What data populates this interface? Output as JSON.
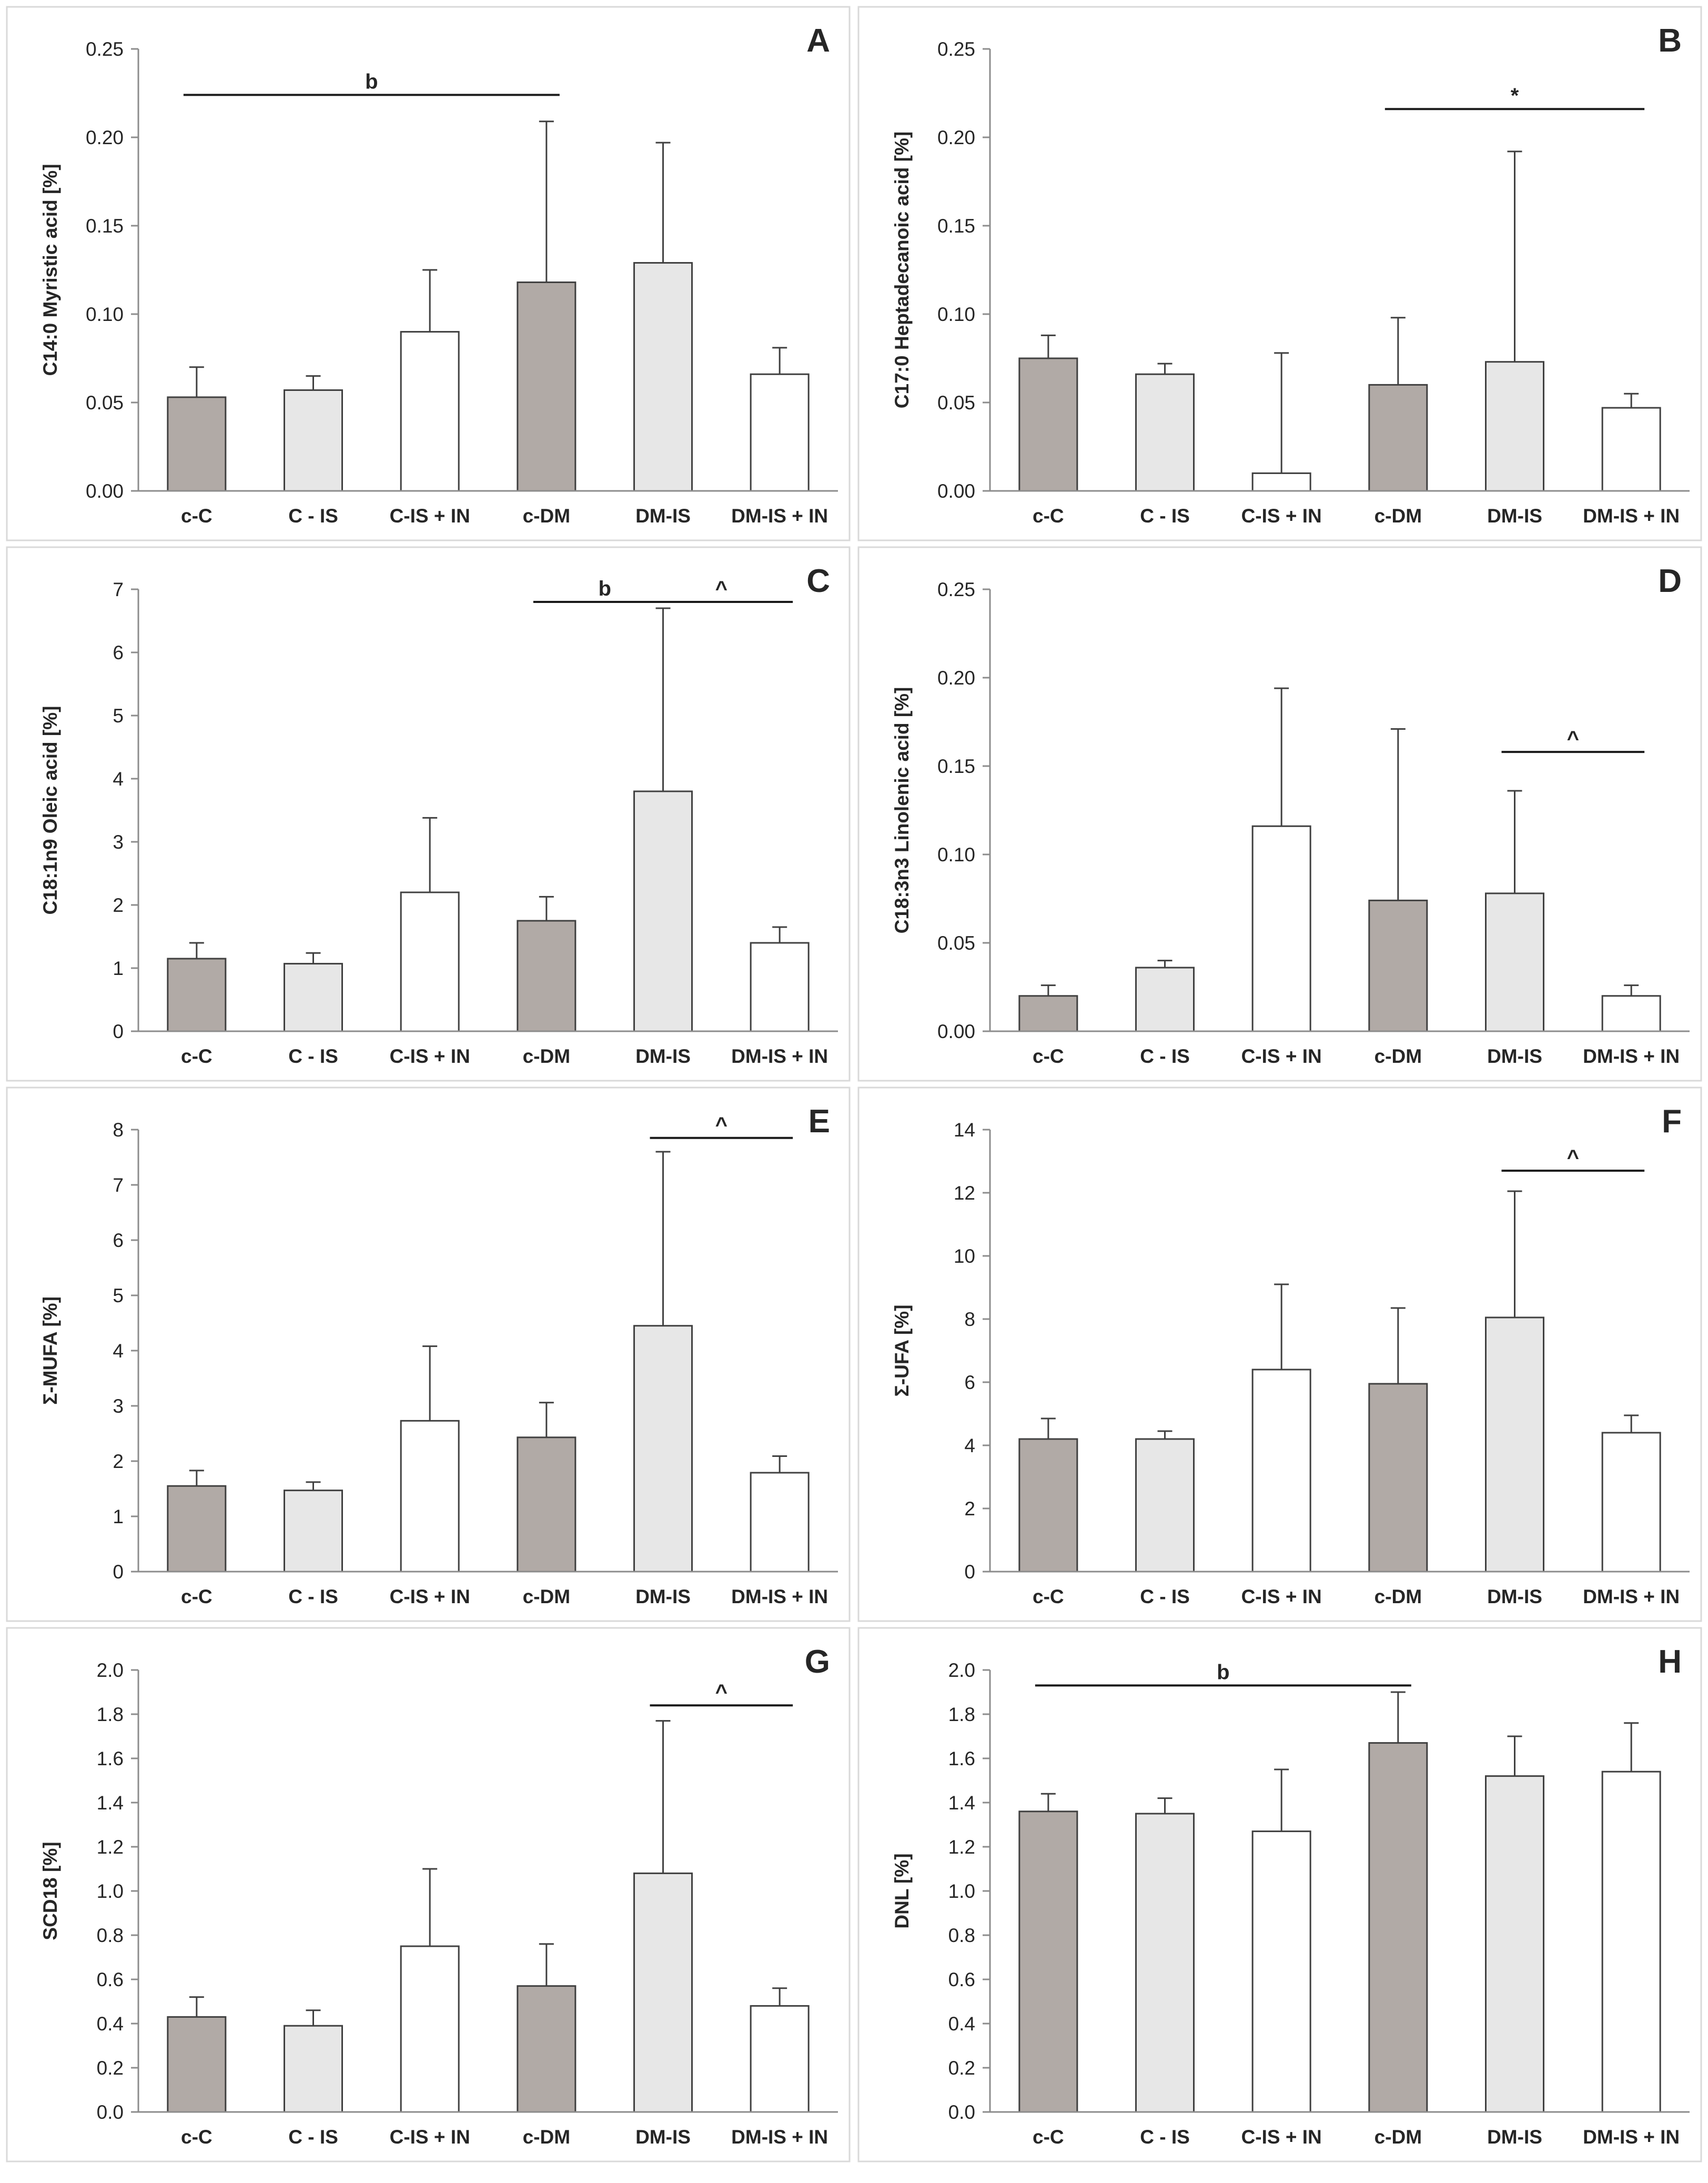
{
  "colors": {
    "dark_gray": "#b1aaa6",
    "light_gray": "#e7e7e7",
    "white": "#ffffff",
    "stroke": "#404040",
    "axis": "#8c8c8c",
    "text": "#262626",
    "panel_border": "#d9d9d9"
  },
  "chart_data": [
    {
      "panel": "A",
      "type": "bar",
      "ylabel": "C14:0 Myristic acid  [%]",
      "categories": [
        "c-C",
        "C - IS",
        "C-IS + IN",
        "c-DM",
        "DM-IS",
        "DM-IS + IN"
      ],
      "bar_colors": [
        "dark_gray",
        "light_gray",
        "white",
        "dark_gray",
        "light_gray",
        "white"
      ],
      "values": [
        0.053,
        0.057,
        0.09,
        0.118,
        0.129,
        0.066
      ],
      "errors": [
        0.017,
        0.008,
        0.035,
        0.091,
        0.068,
        0.015
      ],
      "ylim": [
        0,
        0.25
      ],
      "yticks": [
        0,
        0.05,
        0.1,
        0.15,
        0.2,
        0.25
      ],
      "yticklabels": [
        "0.00",
        "0.05",
        "0.10",
        "0.15",
        "0.20",
        "0.25"
      ],
      "annotations": [
        {
          "label": "b",
          "from": 0,
          "to": 3,
          "y": 0.224
        }
      ]
    },
    {
      "panel": "B",
      "type": "bar",
      "ylabel": "C17:0 Heptadecanoic acid  [%]",
      "categories": [
        "c-C",
        "C - IS",
        "C-IS + IN",
        "c-DM",
        "DM-IS",
        "DM-IS + IN"
      ],
      "bar_colors": [
        "dark_gray",
        "light_gray",
        "white",
        "dark_gray",
        "light_gray",
        "white"
      ],
      "values": [
        0.075,
        0.066,
        0.01,
        0.06,
        0.073,
        0.047
      ],
      "errors": [
        0.013,
        0.006,
        0.068,
        0.038,
        0.119,
        0.008
      ],
      "ylim": [
        0,
        0.25
      ],
      "yticks": [
        0,
        0.05,
        0.1,
        0.15,
        0.2,
        0.25
      ],
      "yticklabels": [
        "0.00",
        "0.05",
        "0.10",
        "0.15",
        "0.20",
        "0.25"
      ],
      "annotations": [
        {
          "label": "*",
          "from": 3,
          "to": 5,
          "y": 0.216
        }
      ]
    },
    {
      "panel": "C",
      "type": "bar",
      "ylabel": "C18:1n9 Oleic acid  [%]",
      "categories": [
        "c-C",
        "C - IS",
        "C-IS + IN",
        "c-DM",
        "DM-IS",
        "DM-IS + IN"
      ],
      "bar_colors": [
        "dark_gray",
        "light_gray",
        "white",
        "dark_gray",
        "light_gray",
        "white"
      ],
      "values": [
        1.15,
        1.07,
        2.2,
        1.75,
        3.8,
        1.4
      ],
      "errors": [
        0.25,
        0.17,
        1.18,
        0.38,
        2.9,
        0.25
      ],
      "ylim": [
        0,
        7
      ],
      "yticks": [
        0,
        1,
        2,
        3,
        4,
        5,
        6,
        7
      ],
      "yticklabels": [
        "0",
        "1",
        "2",
        "3",
        "4",
        "5",
        "6",
        "7"
      ],
      "annotations": [
        {
          "label": "b",
          "from": 3,
          "to": 4,
          "y": 6.8
        },
        {
          "label": "^",
          "from": 4,
          "to": 5,
          "y": 6.8
        }
      ]
    },
    {
      "panel": "D",
      "type": "bar",
      "ylabel": "C18:3n3 Linolenic acid  [%]",
      "categories": [
        "c-C",
        "C - IS",
        "C-IS + IN",
        "c-DM",
        "DM-IS",
        "DM-IS + IN"
      ],
      "bar_colors": [
        "dark_gray",
        "light_gray",
        "white",
        "dark_gray",
        "light_gray",
        "white"
      ],
      "values": [
        0.02,
        0.036,
        0.116,
        0.074,
        0.078,
        0.02
      ],
      "errors": [
        0.006,
        0.004,
        0.078,
        0.097,
        0.058,
        0.006
      ],
      "ylim": [
        0,
        0.25
      ],
      "yticks": [
        0,
        0.05,
        0.1,
        0.15,
        0.2,
        0.25
      ],
      "yticklabels": [
        "0.00",
        "0.05",
        "0.10",
        "0.15",
        "0.20",
        "0.25"
      ],
      "annotations": [
        {
          "label": "^",
          "from": 4,
          "to": 5,
          "y": 0.158
        }
      ]
    },
    {
      "panel": "E",
      "type": "bar",
      "ylabel": "Σ-MUFA  [%]",
      "categories": [
        "c-C",
        "C - IS",
        "C-IS + IN",
        "c-DM",
        "DM-IS",
        "DM-IS + IN"
      ],
      "bar_colors": [
        "dark_gray",
        "light_gray",
        "white",
        "dark_gray",
        "light_gray",
        "white"
      ],
      "values": [
        1.55,
        1.47,
        2.73,
        2.43,
        4.45,
        1.79
      ],
      "errors": [
        0.28,
        0.15,
        1.35,
        0.63,
        3.15,
        0.3
      ],
      "ylim": [
        0,
        8
      ],
      "yticks": [
        0,
        1,
        2,
        3,
        4,
        5,
        6,
        7,
        8
      ],
      "yticklabels": [
        "0",
        "1",
        "2",
        "3",
        "4",
        "5",
        "6",
        "7",
        "8"
      ],
      "annotations": [
        {
          "label": "^",
          "from": 4,
          "to": 5,
          "y": 7.85
        }
      ]
    },
    {
      "panel": "F",
      "type": "bar",
      "ylabel": "Σ-UFA  [%]",
      "categories": [
        "c-C",
        "C - IS",
        "C-IS + IN",
        "c-DM",
        "DM-IS",
        "DM-IS + IN"
      ],
      "bar_colors": [
        "dark_gray",
        "light_gray",
        "white",
        "dark_gray",
        "light_gray",
        "white"
      ],
      "values": [
        4.2,
        4.2,
        6.4,
        5.95,
        8.05,
        4.4
      ],
      "errors": [
        0.65,
        0.25,
        2.7,
        2.4,
        4.0,
        0.55
      ],
      "ylim": [
        0,
        14
      ],
      "yticks": [
        0,
        2,
        4,
        6,
        8,
        10,
        12,
        14
      ],
      "yticklabels": [
        "0",
        "2",
        "4",
        "6",
        "8",
        "10",
        "12",
        "14"
      ],
      "annotations": [
        {
          "label": "^",
          "from": 4,
          "to": 5,
          "y": 12.7
        }
      ]
    },
    {
      "panel": "G",
      "type": "bar",
      "ylabel": "SCD18  [%]",
      "categories": [
        "c-C",
        "C - IS",
        "C-IS + IN",
        "c-DM",
        "DM-IS",
        "DM-IS + IN"
      ],
      "bar_colors": [
        "dark_gray",
        "light_gray",
        "white",
        "dark_gray",
        "light_gray",
        "white"
      ],
      "values": [
        0.43,
        0.39,
        0.75,
        0.57,
        1.08,
        0.48
      ],
      "errors": [
        0.09,
        0.07,
        0.35,
        0.19,
        0.69,
        0.08
      ],
      "ylim": [
        0,
        2.0
      ],
      "yticks": [
        0,
        0.2,
        0.4,
        0.6,
        0.8,
        1.0,
        1.2,
        1.4,
        1.6,
        1.8,
        2.0
      ],
      "yticklabels": [
        "0.0",
        "0.2",
        "0.4",
        "0.6",
        "0.8",
        "1.0",
        "1.2",
        "1.4",
        "1.6",
        "1.8",
        "2.0"
      ],
      "annotations": [
        {
          "label": "^",
          "from": 4,
          "to": 5,
          "y": 1.84
        }
      ]
    },
    {
      "panel": "H",
      "type": "bar",
      "ylabel": "DNL  [%]",
      "categories": [
        "c-C",
        "C - IS",
        "C-IS + IN",
        "c-DM",
        "DM-IS",
        "DM-IS + IN"
      ],
      "bar_colors": [
        "dark_gray",
        "light_gray",
        "white",
        "dark_gray",
        "light_gray",
        "white"
      ],
      "values": [
        1.36,
        1.35,
        1.27,
        1.67,
        1.52,
        1.54
      ],
      "errors": [
        0.08,
        0.07,
        0.28,
        0.23,
        0.18,
        0.22
      ],
      "ylim": [
        0,
        2.0
      ],
      "yticks": [
        0,
        0.2,
        0.4,
        0.6,
        0.8,
        1.0,
        1.2,
        1.4,
        1.6,
        1.8,
        2.0
      ],
      "yticklabels": [
        "0.0",
        "0.2",
        "0.4",
        "0.6",
        "0.8",
        "1.0",
        "1.2",
        "1.4",
        "1.6",
        "1.8",
        "2.0"
      ],
      "annotations": [
        {
          "label": "b",
          "from": 0,
          "to": 3,
          "y": 1.93
        }
      ]
    }
  ]
}
